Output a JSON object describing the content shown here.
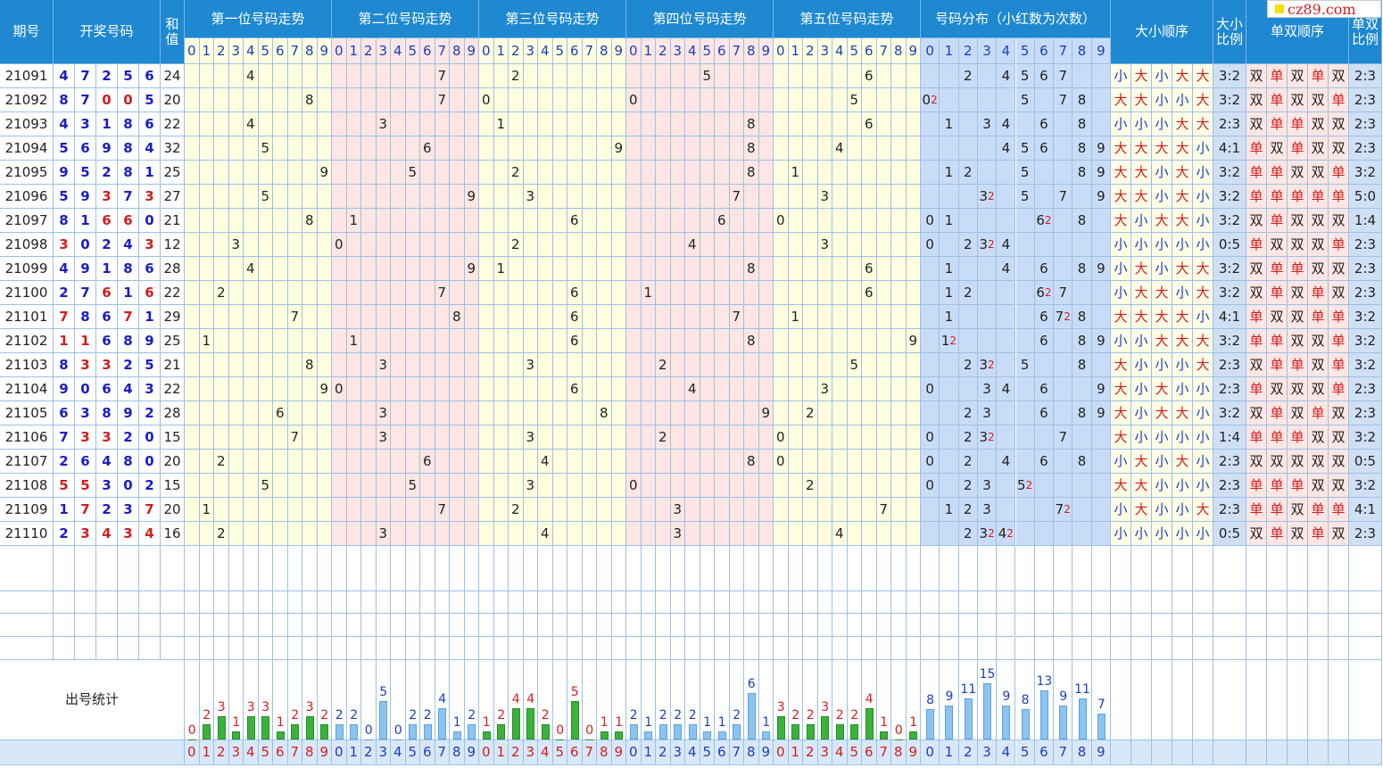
{
  "header": {
    "issue": "期号",
    "numbers": "开奖号码",
    "sum": "和值",
    "positions": [
      "第一位号码走势",
      "第二位号码走势",
      "第三位号码走势",
      "第四位号码走势",
      "第五位号码走势"
    ],
    "dist": "号码分布（小红数为次数）",
    "size_order": "大小顺序",
    "size_ratio": "大小比例",
    "parity_order": "单双顺序",
    "parity_ratio": "单双比例"
  },
  "digits": [
    0,
    1,
    2,
    3,
    4,
    5,
    6,
    7,
    8,
    9
  ],
  "rows": [
    {
      "issue": "21091",
      "nums": [
        4,
        7,
        2,
        5,
        6
      ],
      "sum": 24,
      "dist": [
        0,
        0,
        1,
        0,
        1,
        1,
        1,
        1,
        0,
        0
      ],
      "size": [
        "小",
        "大",
        "小",
        "大",
        "大"
      ],
      "size_ratio": "3:2",
      "parity": [
        "双",
        "单",
        "双",
        "单",
        "双"
      ],
      "parity_ratio": "2:3"
    },
    {
      "issue": "21092",
      "nums": [
        8,
        7,
        0,
        0,
        5
      ],
      "sum": 20,
      "dist": [
        2,
        0,
        0,
        0,
        0,
        1,
        0,
        1,
        1,
        0
      ],
      "size": [
        "大",
        "大",
        "小",
        "小",
        "大"
      ],
      "size_ratio": "3:2",
      "parity": [
        "双",
        "单",
        "双",
        "双",
        "单"
      ],
      "parity_ratio": "2:3"
    },
    {
      "issue": "21093",
      "nums": [
        4,
        3,
        1,
        8,
        6
      ],
      "sum": 22,
      "dist": [
        0,
        1,
        0,
        1,
        1,
        0,
        1,
        0,
        1,
        0
      ],
      "size": [
        "小",
        "小",
        "小",
        "大",
        "大"
      ],
      "size_ratio": "2:3",
      "parity": [
        "双",
        "单",
        "单",
        "双",
        "双"
      ],
      "parity_ratio": "2:3"
    },
    {
      "issue": "21094",
      "nums": [
        5,
        6,
        9,
        8,
        4
      ],
      "sum": 32,
      "dist": [
        0,
        0,
        0,
        0,
        1,
        1,
        1,
        0,
        1,
        1
      ],
      "size": [
        "大",
        "大",
        "大",
        "大",
        "小"
      ],
      "size_ratio": "4:1",
      "parity": [
        "单",
        "双",
        "单",
        "双",
        "双"
      ],
      "parity_ratio": "2:3"
    },
    {
      "issue": "21095",
      "nums": [
        9,
        5,
        2,
        8,
        1
      ],
      "sum": 25,
      "dist": [
        0,
        1,
        1,
        0,
        0,
        1,
        0,
        0,
        1,
        1
      ],
      "size": [
        "大",
        "大",
        "小",
        "大",
        "小"
      ],
      "size_ratio": "3:2",
      "parity": [
        "单",
        "单",
        "双",
        "双",
        "单"
      ],
      "parity_ratio": "3:2"
    },
    {
      "issue": "21096",
      "nums": [
        5,
        9,
        3,
        7,
        3
      ],
      "sum": 27,
      "dist": [
        0,
        0,
        0,
        2,
        0,
        1,
        0,
        1,
        0,
        1
      ],
      "size": [
        "大",
        "大",
        "小",
        "大",
        "小"
      ],
      "size_ratio": "3:2",
      "parity": [
        "单",
        "单",
        "单",
        "单",
        "单"
      ],
      "parity_ratio": "5:0"
    },
    {
      "issue": "21097",
      "nums": [
        8,
        1,
        6,
        6,
        0
      ],
      "sum": 21,
      "dist": [
        1,
        1,
        0,
        0,
        0,
        0,
        2,
        0,
        1,
        0
      ],
      "size": [
        "大",
        "小",
        "大",
        "大",
        "小"
      ],
      "size_ratio": "3:2",
      "parity": [
        "双",
        "单",
        "双",
        "双",
        "双"
      ],
      "parity_ratio": "1:4"
    },
    {
      "issue": "21098",
      "nums": [
        3,
        0,
        2,
        4,
        3
      ],
      "sum": 12,
      "dist": [
        1,
        0,
        1,
        2,
        1,
        0,
        0,
        0,
        0,
        0
      ],
      "size": [
        "小",
        "小",
        "小",
        "小",
        "小"
      ],
      "size_ratio": "0:5",
      "parity": [
        "单",
        "双",
        "双",
        "双",
        "单"
      ],
      "parity_ratio": "2:3"
    },
    {
      "issue": "21099",
      "nums": [
        4,
        9,
        1,
        8,
        6
      ],
      "sum": 28,
      "dist": [
        0,
        1,
        0,
        0,
        1,
        0,
        1,
        0,
        1,
        1
      ],
      "size": [
        "小",
        "大",
        "小",
        "大",
        "大"
      ],
      "size_ratio": "3:2",
      "parity": [
        "双",
        "单",
        "单",
        "双",
        "双"
      ],
      "parity_ratio": "2:3"
    },
    {
      "issue": "21100",
      "nums": [
        2,
        7,
        6,
        1,
        6
      ],
      "sum": 22,
      "dist": [
        0,
        1,
        1,
        0,
        0,
        0,
        2,
        1,
        0,
        0
      ],
      "size": [
        "小",
        "大",
        "大",
        "小",
        "大"
      ],
      "size_ratio": "3:2",
      "parity": [
        "双",
        "单",
        "双",
        "单",
        "双"
      ],
      "parity_ratio": "2:3"
    },
    {
      "issue": "21101",
      "nums": [
        7,
        8,
        6,
        7,
        1
      ],
      "sum": 29,
      "dist": [
        0,
        1,
        0,
        0,
        0,
        0,
        1,
        2,
        1,
        0
      ],
      "size": [
        "大",
        "大",
        "大",
        "大",
        "小"
      ],
      "size_ratio": "4:1",
      "parity": [
        "单",
        "双",
        "双",
        "单",
        "单"
      ],
      "parity_ratio": "3:2"
    },
    {
      "issue": "21102",
      "nums": [
        1,
        1,
        6,
        8,
        9
      ],
      "sum": 25,
      "dist": [
        0,
        2,
        0,
        0,
        0,
        0,
        1,
        0,
        1,
        1
      ],
      "size": [
        "小",
        "小",
        "大",
        "大",
        "大"
      ],
      "size_ratio": "3:2",
      "parity": [
        "单",
        "单",
        "双",
        "双",
        "单"
      ],
      "parity_ratio": "3:2"
    },
    {
      "issue": "21103",
      "nums": [
        8,
        3,
        3,
        2,
        5
      ],
      "sum": 21,
      "dist": [
        0,
        0,
        1,
        2,
        0,
        1,
        0,
        0,
        1,
        0
      ],
      "size": [
        "大",
        "小",
        "小",
        "小",
        "大"
      ],
      "size_ratio": "2:3",
      "parity": [
        "双",
        "单",
        "单",
        "双",
        "单"
      ],
      "parity_ratio": "3:2"
    },
    {
      "issue": "21104",
      "nums": [
        9,
        0,
        6,
        4,
        3
      ],
      "sum": 22,
      "dist": [
        1,
        0,
        0,
        1,
        1,
        0,
        1,
        0,
        0,
        1
      ],
      "size": [
        "大",
        "小",
        "大",
        "小",
        "小"
      ],
      "size_ratio": "2:3",
      "parity": [
        "单",
        "双",
        "双",
        "双",
        "单"
      ],
      "parity_ratio": "2:3"
    },
    {
      "issue": "21105",
      "nums": [
        6,
        3,
        8,
        9,
        2
      ],
      "sum": 28,
      "dist": [
        0,
        0,
        1,
        1,
        0,
        0,
        1,
        0,
        1,
        1
      ],
      "size": [
        "大",
        "小",
        "大",
        "大",
        "小"
      ],
      "size_ratio": "3:2",
      "parity": [
        "双",
        "单",
        "双",
        "单",
        "双"
      ],
      "parity_ratio": "2:3"
    },
    {
      "issue": "21106",
      "nums": [
        7,
        3,
        3,
        2,
        0
      ],
      "sum": 15,
      "dist": [
        1,
        0,
        1,
        2,
        0,
        0,
        0,
        1,
        0,
        0
      ],
      "size": [
        "大",
        "小",
        "小",
        "小",
        "小"
      ],
      "size_ratio": "1:4",
      "parity": [
        "单",
        "单",
        "单",
        "双",
        "双"
      ],
      "parity_ratio": "3:2"
    },
    {
      "issue": "21107",
      "nums": [
        2,
        6,
        4,
        8,
        0
      ],
      "sum": 20,
      "dist": [
        1,
        0,
        1,
        0,
        1,
        0,
        1,
        0,
        1,
        0
      ],
      "size": [
        "小",
        "大",
        "小",
        "大",
        "小"
      ],
      "size_ratio": "2:3",
      "parity": [
        "双",
        "双",
        "双",
        "双",
        "双"
      ],
      "parity_ratio": "0:5"
    },
    {
      "issue": "21108",
      "nums": [
        5,
        5,
        3,
        0,
        2
      ],
      "sum": 15,
      "dist": [
        1,
        0,
        1,
        1,
        0,
        2,
        0,
        0,
        0,
        0
      ],
      "size": [
        "大",
        "大",
        "小",
        "小",
        "小"
      ],
      "size_ratio": "2:3",
      "parity": [
        "单",
        "单",
        "单",
        "双",
        "双"
      ],
      "parity_ratio": "3:2"
    },
    {
      "issue": "21109",
      "nums": [
        1,
        7,
        2,
        3,
        7
      ],
      "sum": 20,
      "dist": [
        0,
        1,
        1,
        1,
        0,
        0,
        0,
        2,
        0,
        0
      ],
      "size": [
        "小",
        "大",
        "小",
        "小",
        "大"
      ],
      "size_ratio": "2:3",
      "parity": [
        "单",
        "单",
        "双",
        "单",
        "单"
      ],
      "parity_ratio": "4:1"
    },
    {
      "issue": "21110",
      "nums": [
        2,
        3,
        4,
        3,
        4
      ],
      "sum": 16,
      "dist": [
        0,
        0,
        1,
        2,
        2,
        0,
        0,
        0,
        0,
        0
      ],
      "size": [
        "小",
        "小",
        "小",
        "小",
        "小"
      ],
      "size_ratio": "0:5",
      "parity": [
        "双",
        "单",
        "双",
        "单",
        "双"
      ],
      "parity_ratio": "2:3"
    }
  ],
  "stats": {
    "label": "出号统计",
    "positions": [
      [
        0,
        2,
        3,
        1,
        3,
        3,
        1,
        2,
        3,
        2
      ],
      [
        2,
        2,
        0,
        5,
        0,
        2,
        2,
        4,
        1,
        2
      ],
      [
        1,
        2,
        4,
        4,
        2,
        0,
        5,
        0,
        1,
        1
      ],
      [
        2,
        1,
        2,
        2,
        2,
        1,
        1,
        2,
        6,
        1
      ],
      [
        3,
        2,
        2,
        3,
        2,
        2,
        4,
        1,
        0,
        1
      ]
    ],
    "dist": [
      8,
      9,
      11,
      15,
      9,
      8,
      13,
      9,
      11,
      7
    ]
  },
  "watermark": "cz89.com"
}
